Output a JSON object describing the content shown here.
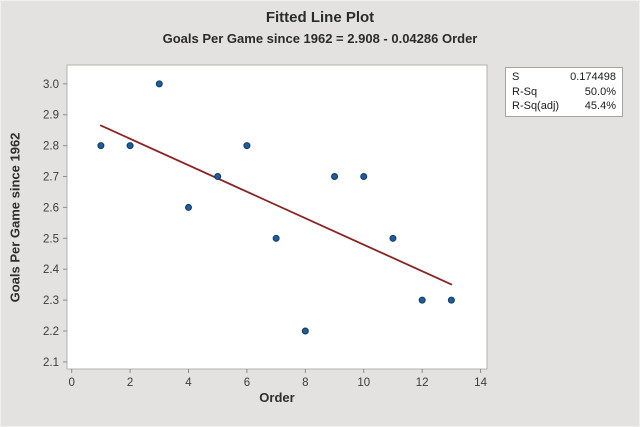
{
  "chart": {
    "title": "Fitted Line Plot",
    "subtitle": "Goals Per Game since 1962 = 2.908 - 0.04286 Order",
    "xlabel": "Order",
    "ylabel": "Goals Per Game since 1962"
  },
  "chart_data": {
    "type": "scatter",
    "title": "Fitted Line Plot",
    "subtitle": "Goals Per Game since 1962 = 2.908 - 0.04286 Order",
    "xlabel": "Order",
    "ylabel": "Goals Per Game since 1962",
    "x": [
      1,
      2,
      3,
      4,
      5,
      6,
      7,
      8,
      9,
      10,
      11,
      12,
      13
    ],
    "y": [
      2.8,
      2.8,
      3.0,
      2.6,
      2.7,
      2.8,
      2.5,
      2.2,
      2.7,
      2.7,
      2.5,
      2.3,
      2.3
    ],
    "fit_line": {
      "equation": "Goals Per Game since 1962 = 2.908 - 0.04286 Order",
      "intercept": 2.908,
      "slope": -0.04286,
      "x_start": 1,
      "x_end": 13
    },
    "xticks": [
      0,
      2,
      4,
      6,
      8,
      10,
      12,
      14
    ],
    "xtick_labels": [
      "0",
      "2",
      "4",
      "6",
      "8",
      "10",
      "12",
      "14"
    ],
    "yticks": [
      2.1,
      2.2,
      2.3,
      2.4,
      2.5,
      2.6,
      2.7,
      2.8,
      2.9,
      3.0
    ],
    "ytick_labels": [
      "2.1",
      "2.2",
      "2.3",
      "2.4",
      "2.5",
      "2.6",
      "2.7",
      "2.8",
      "2.9",
      "3.0"
    ],
    "xlim": [
      -0.16,
      14.22
    ],
    "ylim": [
      2.077,
      3.061
    ],
    "grid": false,
    "legend_position": "top-right",
    "stats": [
      {
        "label": "S",
        "value": "0.174498"
      },
      {
        "label": "R-Sq",
        "value": "50.0%"
      },
      {
        "label": "R-Sq(adj)",
        "value": "45.4%"
      }
    ],
    "colors": {
      "background": "#e3e2e1",
      "plot_background": "#ffffff",
      "frame": "#b5b3b0",
      "tick": "#8e8c89",
      "point": "#1e5c9b",
      "point_edge": "#133a63",
      "line": "#8b2322"
    }
  }
}
